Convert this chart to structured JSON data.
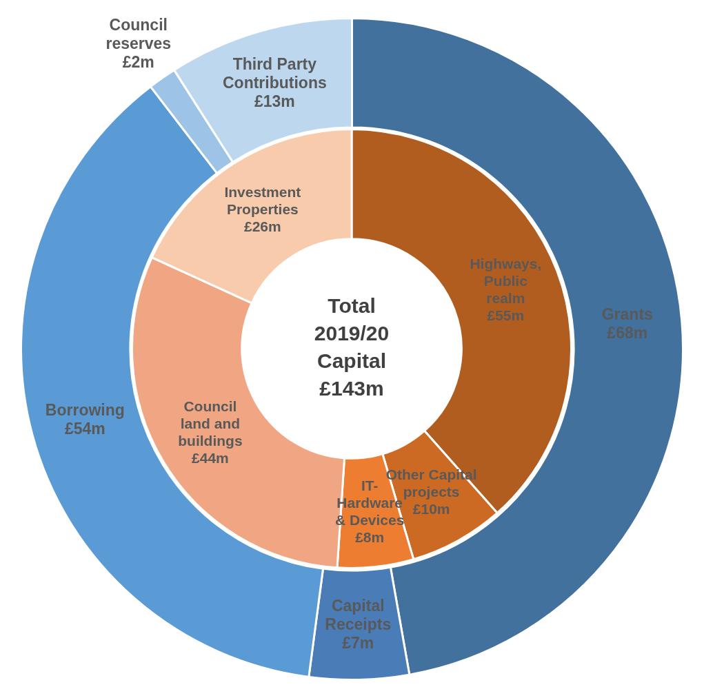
{
  "chart_data": [
    {
      "type": "donut",
      "legend": false,
      "categories": [
        "Grants",
        "Capital\nReceipts",
        "Borrowing",
        "Council\nreserves",
        "Third Party\nContributions"
      ],
      "values": [
        68,
        7,
        54,
        2,
        13
      ],
      "value_labels": [
        "£68m",
        "£7m",
        "£54m",
        "£2m",
        "£13m"
      ],
      "colors": [
        "#41719c",
        "#4a7db8",
        "#5b9bd5",
        "#9dc3e6",
        "#bdd7ee"
      ]
    },
    {
      "type": "donut",
      "legend": false,
      "annotations": [
        "Total\n2019/20\nCapital\n£143m"
      ],
      "categories": [
        "Highways,\nPublic\nrealm",
        "Other Capital\nprojects",
        "IT-\nHardware\n& Devices",
        "Council\nland and\nbuildings",
        "Investment\nProperties"
      ],
      "values": [
        55,
        10,
        8,
        44,
        26
      ],
      "value_labels": [
        "£55m",
        "£10m",
        "£8m",
        "£44m",
        "£26m"
      ],
      "colors": [
        "#b15d1f",
        "#cc6a24",
        "#ed7d31",
        "#f0a683",
        "#f8cbad"
      ]
    }
  ]
}
